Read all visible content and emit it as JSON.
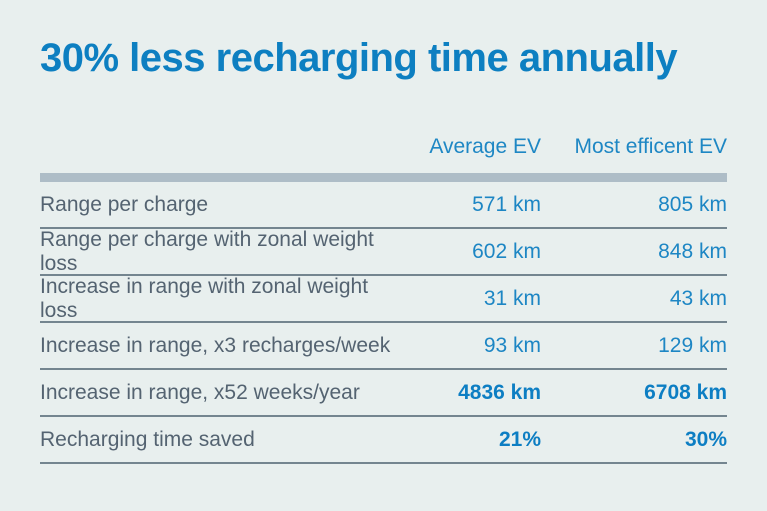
{
  "title": "30% less recharging time annually",
  "table": {
    "columns": {
      "avg": "Average EV",
      "most": "Most efficent EV"
    },
    "rows": [
      {
        "label": "Range per charge",
        "avg": "571 km",
        "most": "805 km"
      },
      {
        "label": "Range per charge with zonal weight loss",
        "avg": "602 km",
        "most": "848 km"
      },
      {
        "label": "Increase in range with zonal weight loss",
        "avg": "31 km",
        "most": "43 km"
      },
      {
        "label": "Increase in range, x3 recharges/week",
        "avg": "93 km",
        "most": "129 km"
      },
      {
        "label": "Increase in range, x52 weeks/year",
        "avg": "4836 km",
        "most": "6708 km"
      },
      {
        "label": "Recharging time saved",
        "avg": "21%",
        "most": "30%"
      }
    ]
  },
  "colors": {
    "background": "#e8efee",
    "title_blue": "#0d7fc1",
    "value_blue": "#1d86c4",
    "label_slate": "#546371",
    "header_bar": "#aebdc7",
    "row_separator": "#74858f"
  },
  "chart_data": {
    "type": "table",
    "title": "30% less recharging time annually",
    "columns": [
      "",
      "Average EV",
      "Most efficent EV"
    ],
    "rows": [
      [
        "Range per charge",
        "571 km",
        "805 km"
      ],
      [
        "Range per charge with zonal weight loss",
        "602 km",
        "848 km"
      ],
      [
        "Increase in range with zonal weight loss",
        "31 km",
        "43 km"
      ],
      [
        "Increase in range, x3 recharges/week",
        "93 km",
        "129 km"
      ],
      [
        "Increase in range, x52 weeks/year",
        "4836 km",
        "6708 km"
      ],
      [
        "Recharging time saved",
        "21%",
        "30%"
      ]
    ],
    "bold_rows": [
      4,
      5
    ],
    "units": [
      "km",
      "km",
      "km",
      "km",
      "km",
      "%"
    ],
    "numeric_values": {
      "average_ev": [
        571,
        602,
        31,
        93,
        4836,
        21
      ],
      "most_efficent_ev": [
        805,
        848,
        43,
        129,
        6708,
        30
      ]
    }
  }
}
